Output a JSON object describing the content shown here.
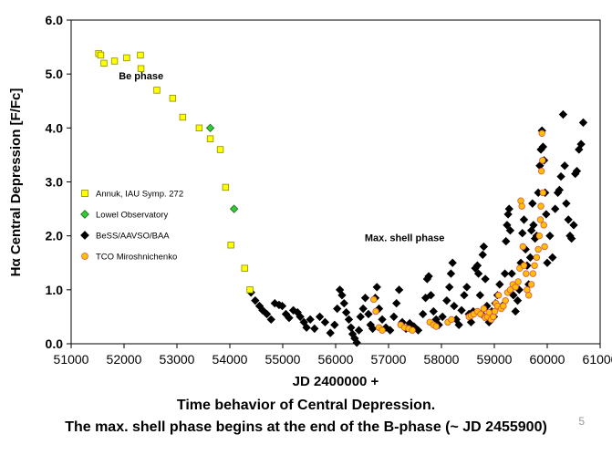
{
  "chart_data": {
    "type": "scatter",
    "xlabel": "JD 2400000 +",
    "ylabel": "Hα Central Depression [F/Fc]",
    "xlim": [
      51000,
      61000
    ],
    "ylim": [
      0.0,
      6.0
    ],
    "x_ticks": [
      "51000",
      "52000",
      "53000",
      "54000",
      "55000",
      "56000",
      "57000",
      "58000",
      "59000",
      "60000",
      "61000"
    ],
    "y_ticks": [
      "0.0",
      "1.0",
      "2.0",
      "3.0",
      "4.0",
      "5.0",
      "6.0"
    ],
    "grid": false,
    "legend_position": "left",
    "annotations": [
      {
        "text": "Be phase",
        "x": 51900,
        "y": 4.9
      },
      {
        "text": "Max. shell phase",
        "x": 56550,
        "y": 1.9
      }
    ],
    "series": [
      {
        "name": "Annuk, IAU Symp. 272",
        "marker": "square",
        "color": "#ffff00",
        "edge": "#8c8c00",
        "points": [
          [
            51520,
            5.38
          ],
          [
            51560,
            5.35
          ],
          [
            51620,
            5.2
          ],
          [
            51820,
            5.24
          ],
          [
            52050,
            5.3
          ],
          [
            52310,
            5.35
          ],
          [
            52320,
            5.1
          ],
          [
            52620,
            4.7
          ],
          [
            52920,
            4.55
          ],
          [
            53110,
            4.2
          ],
          [
            53420,
            4.0
          ],
          [
            53630,
            3.8
          ],
          [
            53820,
            3.6
          ],
          [
            53920,
            2.9
          ],
          [
            54020,
            1.83
          ],
          [
            54280,
            1.4
          ],
          [
            54380,
            1.0
          ]
        ]
      },
      {
        "name": "Lowel Observatory",
        "marker": "diamond",
        "color": "#33cc33",
        "edge": "#1a661a",
        "points": [
          [
            53630,
            4.0
          ],
          [
            54080,
            2.5
          ]
        ]
      },
      {
        "name": "BeSS/AAVSO/BAA",
        "marker": "diamond",
        "color": "#000000",
        "edge": "#000000",
        "points": [
          [
            54400,
            0.95
          ],
          [
            54480,
            0.8
          ],
          [
            54560,
            0.7
          ],
          [
            54620,
            0.62
          ],
          [
            54700,
            0.55
          ],
          [
            54780,
            0.45
          ],
          [
            54850,
            0.75
          ],
          [
            54930,
            0.72
          ],
          [
            54990,
            0.7
          ],
          [
            55060,
            0.55
          ],
          [
            55120,
            0.48
          ],
          [
            55200,
            0.62
          ],
          [
            55280,
            0.58
          ],
          [
            55330,
            0.5
          ],
          [
            55400,
            0.4
          ],
          [
            55450,
            0.3
          ],
          [
            55520,
            0.45
          ],
          [
            55600,
            0.28
          ],
          [
            55700,
            0.5
          ],
          [
            55800,
            0.4
          ],
          [
            55900,
            0.2
          ],
          [
            55980,
            0.35
          ],
          [
            56030,
            0.65
          ],
          [
            56080,
            1.0
          ],
          [
            56120,
            0.9
          ],
          [
            56160,
            0.75
          ],
          [
            56200,
            0.58
          ],
          [
            56250,
            0.45
          ],
          [
            56290,
            0.3
          ],
          [
            56320,
            0.18
          ],
          [
            56360,
            0.1
          ],
          [
            56400,
            0.02
          ],
          [
            56440,
            0.25
          ],
          [
            56470,
            0.5
          ],
          [
            56520,
            0.65
          ],
          [
            56560,
            0.85
          ],
          [
            56620,
            0.55
          ],
          [
            56660,
            0.35
          ],
          [
            56700,
            0.28
          ],
          [
            56750,
            0.85
          ],
          [
            56780,
            1.05
          ],
          [
            56820,
            0.65
          ],
          [
            56880,
            0.45
          ],
          [
            56950,
            0.3
          ],
          [
            57030,
            0.25
          ],
          [
            57100,
            0.5
          ],
          [
            57150,
            0.75
          ],
          [
            57200,
            1.0
          ],
          [
            57260,
            0.4
          ],
          [
            57330,
            0.28
          ],
          [
            57400,
            0.38
          ],
          [
            57480,
            0.32
          ],
          [
            57560,
            0.25
          ],
          [
            57650,
            0.55
          ],
          [
            57700,
            0.85
          ],
          [
            57730,
            1.2
          ],
          [
            57760,
            1.25
          ],
          [
            57800,
            0.9
          ],
          [
            57850,
            0.6
          ],
          [
            57900,
            0.45
          ],
          [
            57950,
            0.35
          ],
          [
            58020,
            0.5
          ],
          [
            58100,
            0.8
          ],
          [
            58150,
            1.05
          ],
          [
            58180,
            1.3
          ],
          [
            58210,
            1.5
          ],
          [
            58240,
            0.7
          ],
          [
            58280,
            0.45
          ],
          [
            58330,
            0.35
          ],
          [
            58380,
            0.62
          ],
          [
            58430,
            0.9
          ],
          [
            58480,
            1.05
          ],
          [
            58520,
            0.55
          ],
          [
            58560,
            0.4
          ],
          [
            58600,
            0.6
          ],
          [
            58640,
            1.4
          ],
          [
            58680,
            1.45
          ],
          [
            58700,
            1.3
          ],
          [
            58730,
            0.9
          ],
          [
            58760,
            0.55
          ],
          [
            58780,
            1.65
          ],
          [
            58800,
            1.8
          ],
          [
            58830,
            1.2
          ],
          [
            58860,
            0.7
          ],
          [
            58900,
            0.4
          ],
          [
            58950,
            0.6
          ],
          [
            58990,
            0.5
          ],
          [
            59020,
            0.75
          ],
          [
            59060,
            0.9
          ],
          [
            59100,
            1.1
          ],
          [
            59150,
            0.7
          ],
          [
            59200,
            1.3
          ],
          [
            59220,
            1.9
          ],
          [
            59240,
            2.2
          ],
          [
            59260,
            2.4
          ],
          [
            59280,
            2.5
          ],
          [
            59300,
            2.1
          ],
          [
            59330,
            1.3
          ],
          [
            59360,
            0.9
          ],
          [
            59400,
            0.6
          ],
          [
            59440,
            0.8
          ],
          [
            59470,
            1.0
          ],
          [
            59500,
            1.5
          ],
          [
            59530,
            2.05
          ],
          [
            59560,
            2.3
          ],
          [
            59590,
            1.75
          ],
          [
            59620,
            1.45
          ],
          [
            59650,
            1.1
          ],
          [
            59680,
            1.6
          ],
          [
            59700,
            2.1
          ],
          [
            59720,
            2.6
          ],
          [
            59740,
            2.2
          ],
          [
            59770,
            1.95
          ],
          [
            59800,
            2.0
          ],
          [
            59830,
            2.8
          ],
          [
            59860,
            3.3
          ],
          [
            59880,
            3.6
          ],
          [
            59900,
            3.95
          ],
          [
            59920,
            3.65
          ],
          [
            59940,
            3.4
          ],
          [
            59960,
            2.8
          ],
          [
            59980,
            2.4
          ],
          [
            60000,
            1.5
          ],
          [
            60050,
            2.0
          ],
          [
            60100,
            1.6
          ],
          [
            60150,
            2.5
          ],
          [
            60200,
            2.8
          ],
          [
            60230,
            2.85
          ],
          [
            60260,
            3.1
          ],
          [
            60300,
            4.25
          ],
          [
            60330,
            3.3
          ],
          [
            60360,
            2.6
          ],
          [
            60400,
            2.3
          ],
          [
            60430,
            2.0
          ],
          [
            60460,
            1.95
          ],
          [
            60500,
            2.2
          ],
          [
            60530,
            3.15
          ],
          [
            60560,
            3.2
          ],
          [
            60600,
            3.6
          ],
          [
            60640,
            3.7
          ],
          [
            60680,
            4.1
          ]
        ]
      },
      {
        "name": "TCO Miroshnichenko",
        "marker": "circle",
        "color": "#ffc000",
        "edge": "#d9534f",
        "points": [
          [
            56720,
            0.82
          ],
          [
            56760,
            0.6
          ],
          [
            56820,
            0.3
          ],
          [
            56880,
            0.25
          ],
          [
            57230,
            0.35
          ],
          [
            57300,
            0.3
          ],
          [
            57380,
            0.28
          ],
          [
            57450,
            0.25
          ],
          [
            57780,
            0.4
          ],
          [
            57850,
            0.35
          ],
          [
            57900,
            0.32
          ],
          [
            58120,
            0.4
          ],
          [
            58190,
            0.45
          ],
          [
            58520,
            0.5
          ],
          [
            58560,
            0.52
          ],
          [
            58610,
            0.55
          ],
          [
            58680,
            0.6
          ],
          [
            58740,
            0.55
          ],
          [
            58800,
            0.65
          ],
          [
            58820,
            0.5
          ],
          [
            58830,
            0.48
          ],
          [
            58870,
            0.5
          ],
          [
            58900,
            0.58
          ],
          [
            58940,
            0.45
          ],
          [
            58980,
            0.5
          ],
          [
            59010,
            0.6
          ],
          [
            59030,
            0.75
          ],
          [
            59060,
            0.7
          ],
          [
            59080,
            0.9
          ],
          [
            59130,
            0.65
          ],
          [
            59170,
            0.7
          ],
          [
            59210,
            0.8
          ],
          [
            59250,
            0.95
          ],
          [
            59300,
            1.0
          ],
          [
            59350,
            1.1
          ],
          [
            59400,
            1.05
          ],
          [
            59450,
            1.15
          ],
          [
            59480,
            1.4
          ],
          [
            59500,
            2.65
          ],
          [
            59520,
            2.55
          ],
          [
            59540,
            1.8
          ],
          [
            59560,
            1.45
          ],
          [
            59600,
            1.3
          ],
          [
            59620,
            1.0
          ],
          [
            59650,
            0.9
          ],
          [
            59700,
            1.1
          ],
          [
            59730,
            1.3
          ],
          [
            59760,
            1.45
          ],
          [
            59800,
            1.6
          ],
          [
            59830,
            1.75
          ],
          [
            59850,
            2.0
          ],
          [
            59870,
            2.3
          ],
          [
            59880,
            2.55
          ],
          [
            59890,
            3.2
          ],
          [
            59900,
            3.9
          ],
          [
            59910,
            3.4
          ],
          [
            59920,
            2.8
          ],
          [
            59935,
            2.2
          ],
          [
            59950,
            1.8
          ]
        ]
      }
    ]
  },
  "caption": {
    "line1": "Time behavior of Central Depression.",
    "line2": "The max. shell phase begins at the end of the B-phase (~ JD 2455900)"
  },
  "page_number": "5"
}
